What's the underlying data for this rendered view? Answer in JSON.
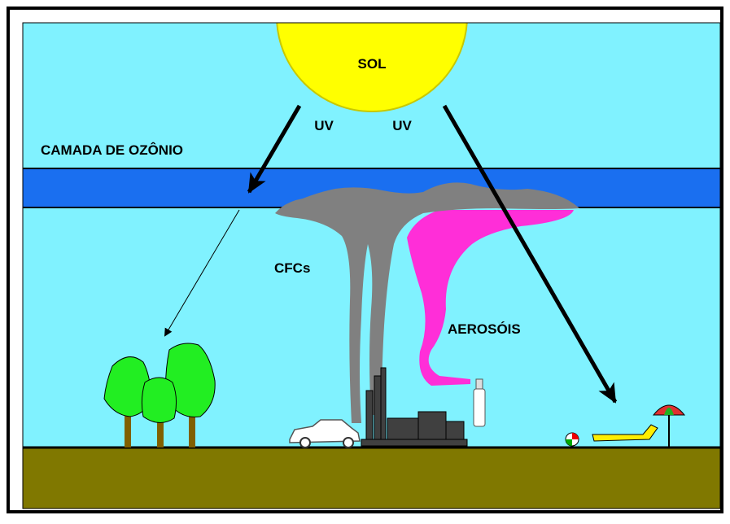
{
  "labels": {
    "sun": "SOL",
    "uv_left": "UV",
    "uv_right": "UV",
    "ozone_layer": "CAMADA DE OZÔNIO",
    "cfcs": "CFCs",
    "aerosols": "AEROSÓIS"
  }
}
